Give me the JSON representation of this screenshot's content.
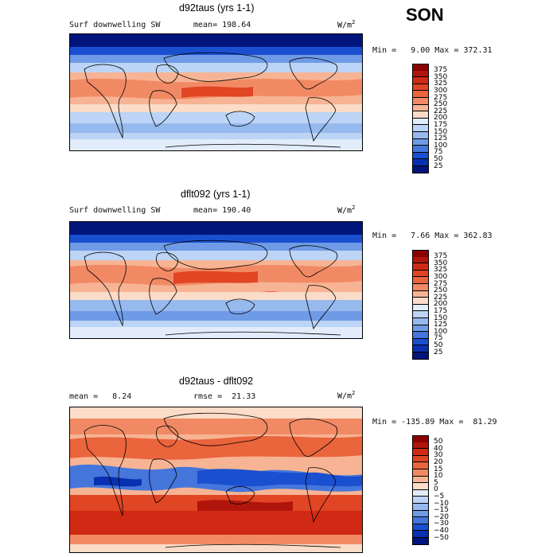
{
  "season": "SON",
  "chart_data": [
    {
      "type": "heatmap",
      "title": "d92taus (yrs 1-1)",
      "variable": "Surf downwelling SW",
      "mean_label": "mean= 198.64",
      "units_base": "W/m",
      "units_exp": "2",
      "minmax_label": "Min =   9.00 Max = 372.31",
      "min": 9.0,
      "max": 372.31,
      "mean": 198.64,
      "colorbar_levels": [
        "375",
        "350",
        "325",
        "300",
        "275",
        "250",
        "225",
        "200",
        "175",
        "150",
        "125",
        "100",
        "75",
        "50",
        "25"
      ],
      "colors": [
        "#8b0000",
        "#b0150b",
        "#d12a14",
        "#e04524",
        "#ea643c",
        "#f18a64",
        "#f7b494",
        "#fbdcc8",
        "#e2ecfa",
        "#bcd4f5",
        "#96b9ee",
        "#6f9be6",
        "#4576dc",
        "#1a4fd0",
        "#0930b0",
        "#00157c"
      ]
    },
    {
      "type": "heatmap",
      "title": "dflt092 (yrs 1-1)",
      "variable": "Surf downwelling SW",
      "mean_label": "mean= 190.40",
      "units_base": "W/m",
      "units_exp": "2",
      "minmax_label": "Min =   7.66 Max = 362.83",
      "min": 7.66,
      "max": 362.83,
      "mean": 190.4,
      "colorbar_levels": [
        "375",
        "350",
        "325",
        "300",
        "275",
        "250",
        "225",
        "200",
        "175",
        "150",
        "125",
        "100",
        "75",
        "50",
        "25"
      ],
      "colors": [
        "#8b0000",
        "#b0150b",
        "#d12a14",
        "#e04524",
        "#ea643c",
        "#f18a64",
        "#f7b494",
        "#fbdcc8",
        "#e2ecfa",
        "#bcd4f5",
        "#96b9ee",
        "#6f9be6",
        "#4576dc",
        "#1a4fd0",
        "#0930b0",
        "#00157c"
      ]
    },
    {
      "type": "heatmap",
      "title": "d92taus - dflt092",
      "mean_label": "mean =   8.24",
      "rmse_label": "rmse =  21.33",
      "units_base": "W/m",
      "units_exp": "2",
      "minmax_label": "Min = -135.89 Max =  81.29",
      "min": -135.89,
      "max": 81.29,
      "mean": 8.24,
      "rmse": 21.33,
      "colorbar_levels": [
        "50",
        "40",
        "30",
        "20",
        "15",
        "10",
        "5",
        "0",
        "−5",
        "−10",
        "−15",
        "−20",
        "−30",
        "−40",
        "−50"
      ],
      "colors": [
        "#8b0000",
        "#b0150b",
        "#d12a14",
        "#e04524",
        "#ea643c",
        "#f18a64",
        "#f7b494",
        "#fbdcc8",
        "#e2ecfa",
        "#bcd4f5",
        "#96b9ee",
        "#6f9be6",
        "#4576dc",
        "#1a4fd0",
        "#0930b0",
        "#00157c"
      ]
    }
  ]
}
